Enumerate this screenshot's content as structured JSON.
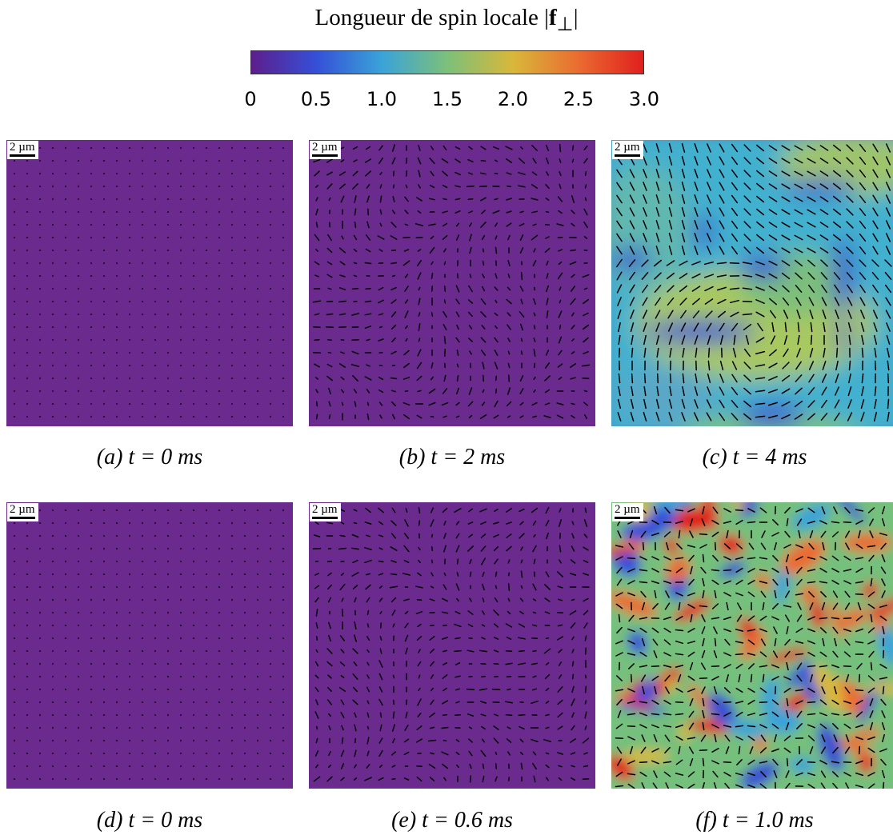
{
  "title": {
    "prefix": "Longueur de spin locale |",
    "bold": "f",
    "sub": "⊥",
    "suffix": "|"
  },
  "colorbar": {
    "min": 0,
    "max": 3.0,
    "tick_labels": [
      "0",
      "0.5",
      "1.0",
      "1.5",
      "2.0",
      "2.5",
      "3.0"
    ],
    "tick_values": [
      0,
      0.5,
      1.0,
      1.5,
      2.0,
      2.5,
      3.0
    ],
    "colors": [
      "#5d1e8c",
      "#3550d8",
      "#3aa3d8",
      "#7cc07a",
      "#d8b83a",
      "#ea6c30",
      "#e0201e"
    ]
  },
  "scale_label": "2 µm",
  "panels": [
    {
      "caption": "(a) t = 0 ms",
      "level": "low"
    },
    {
      "caption": "(b) t = 2 ms",
      "level": "low-arrows"
    },
    {
      "caption": "(c) t = 4 ms",
      "level": "domains"
    },
    {
      "caption": "(d) t = 0 ms",
      "level": "low"
    },
    {
      "caption": "(e) t = 0.6 ms",
      "level": "low-arrows"
    },
    {
      "caption": "(f) t = 1.0 ms",
      "level": "turbulent"
    }
  ]
}
